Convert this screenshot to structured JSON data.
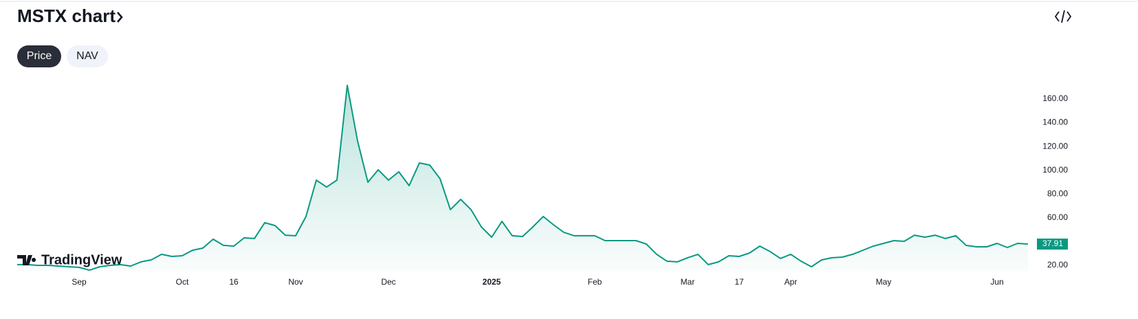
{
  "header": {
    "title": "MSTX chart",
    "tabs": [
      "Price",
      "NAV"
    ]
  },
  "watermark": "TradingView",
  "chart_data": {
    "type": "area",
    "color": "#089981",
    "categories": [
      null,
      null,
      null,
      null,
      null,
      null,
      "Sep",
      null,
      null,
      null,
      null,
      null,
      null,
      null,
      null,
      null,
      "Oct",
      null,
      null,
      null,
      null,
      "16",
      null,
      null,
      null,
      null,
      null,
      "Nov",
      null,
      null,
      null,
      null,
      null,
      null,
      null,
      null,
      "Dec",
      null,
      null,
      null,
      null,
      null,
      null,
      null,
      null,
      null,
      "2025",
      null,
      null,
      null,
      null,
      null,
      null,
      null,
      null,
      null,
      "Feb",
      null,
      null,
      null,
      null,
      null,
      null,
      null,
      null,
      "Mar",
      null,
      null,
      null,
      null,
      "17",
      null,
      null,
      null,
      null,
      "Apr",
      null,
      null,
      null,
      null,
      null,
      null,
      null,
      null,
      "May",
      null,
      null,
      null,
      null,
      null,
      null,
      null,
      null,
      null,
      null,
      "Jun",
      null,
      null,
      null
    ],
    "values": [
      20.6,
      20.6,
      20,
      20,
      19.4,
      18.8,
      18.3,
      16,
      18.8,
      20,
      20.6,
      19.4,
      22.9,
      24.6,
      29.3,
      27.5,
      28.1,
      32.7,
      34.5,
      42,
      36.8,
      36.2,
      43.1,
      42.6,
      55.9,
      53.5,
      45.4,
      44.9,
      61.1,
      91.7,
      85.9,
      91.7,
      171.5,
      124.7,
      90,
      100.4,
      91.7,
      98.7,
      87.1,
      106.2,
      104.4,
      92.9,
      66.9,
      75.5,
      66.9,
      52.4,
      43.7,
      57,
      44.9,
      44.3,
      52.4,
      61.1,
      54.1,
      47.8,
      44.9,
      44.9,
      44.9,
      40.8,
      40.8,
      40.8,
      40.8,
      37.9,
      29.3,
      23.5,
      22.9,
      26.4,
      29.3,
      20.6,
      22.9,
      28.1,
      27.5,
      30.4,
      36.2,
      31.6,
      25.8,
      29.3,
      23.5,
      18.8,
      24.6,
      26.4,
      26.9,
      29.3,
      32.7,
      36.2,
      38.5,
      40.8,
      40.2,
      45.4,
      43.7,
      45.4,
      42.6,
      44.9,
      36.8,
      35.6,
      35.6,
      38.5,
      35,
      38.5,
      37.91
    ],
    "last_price_label": "37.91",
    "ylim": [
      15,
      180
    ],
    "yticks": [
      {
        "value": 20,
        "label": "20.00"
      },
      {
        "value": 60,
        "label": "60.00"
      },
      {
        "value": 80,
        "label": "80.00"
      },
      {
        "value": 100,
        "label": "100.00"
      },
      {
        "value": 120,
        "label": "120.00"
      },
      {
        "value": 140,
        "label": "140.00"
      },
      {
        "value": 160,
        "label": "160.00"
      }
    ],
    "grid": false
  }
}
